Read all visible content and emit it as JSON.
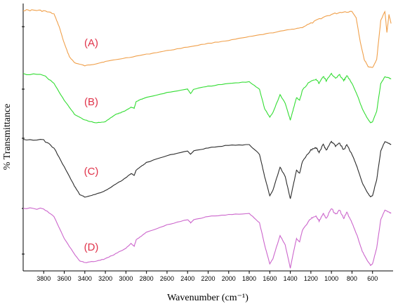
{
  "chart_data": {
    "type": "line",
    "xlabel": "Wavenumber (cm⁻¹)",
    "ylabel": "% Transmittance",
    "xlim": [
      4000,
      400
    ],
    "x_reversed": true,
    "x_ticks": [
      3800,
      3600,
      3400,
      3200,
      3000,
      2800,
      2600,
      2400,
      2200,
      2000,
      1800,
      1600,
      1400,
      1200,
      1000,
      800,
      600
    ],
    "y_ticks_labeled": false,
    "grid": false,
    "legend": "none",
    "series": [
      {
        "name": "(A)",
        "color": "#f0a04b",
        "points": [
          [
            4000,
            0.03
          ],
          [
            3900,
            0.03
          ],
          [
            3800,
            0.04
          ],
          [
            3700,
            0.09
          ],
          [
            3650,
            0.3
          ],
          [
            3600,
            0.58
          ],
          [
            3550,
            0.8
          ],
          [
            3500,
            0.9
          ],
          [
            3400,
            0.95
          ],
          [
            3300,
            0.92
          ],
          [
            3200,
            0.88
          ],
          [
            3000,
            0.82
          ],
          [
            2800,
            0.76
          ],
          [
            2600,
            0.7
          ],
          [
            2400,
            0.64
          ],
          [
            2200,
            0.58
          ],
          [
            2000,
            0.53
          ],
          [
            1800,
            0.47
          ],
          [
            1600,
            0.41
          ],
          [
            1400,
            0.35
          ],
          [
            1300,
            0.32
          ],
          [
            1200,
            0.25
          ],
          [
            1100,
            0.16
          ],
          [
            1000,
            0.1
          ],
          [
            900,
            0.06
          ],
          [
            800,
            0.05
          ],
          [
            760,
            0.15
          ],
          [
            720,
            0.55
          ],
          [
            680,
            0.85
          ],
          [
            640,
            0.97
          ],
          [
            600,
            0.98
          ],
          [
            560,
            0.85
          ],
          [
            520,
            0.2
          ],
          [
            480,
            0.05
          ],
          [
            460,
            0.4
          ],
          [
            440,
            0.1
          ],
          [
            420,
            0.25
          ]
        ]
      },
      {
        "name": "(B)",
        "color": "#33dd33",
        "points": [
          [
            4000,
            0.03
          ],
          [
            3800,
            0.05
          ],
          [
            3700,
            0.2
          ],
          [
            3600,
            0.5
          ],
          [
            3500,
            0.75
          ],
          [
            3400,
            0.85
          ],
          [
            3300,
            0.9
          ],
          [
            3200,
            0.88
          ],
          [
            3100,
            0.75
          ],
          [
            3050,
            0.72
          ],
          [
            3000,
            0.68
          ],
          [
            2950,
            0.62
          ],
          [
            2920,
            0.64
          ],
          [
            2900,
            0.52
          ],
          [
            2850,
            0.48
          ],
          [
            2800,
            0.45
          ],
          [
            2600,
            0.36
          ],
          [
            2400,
            0.3
          ],
          [
            2370,
            0.38
          ],
          [
            2340,
            0.3
          ],
          [
            2200,
            0.25
          ],
          [
            2000,
            0.2
          ],
          [
            1800,
            0.17
          ],
          [
            1700,
            0.3
          ],
          [
            1650,
            0.65
          ],
          [
            1600,
            0.8
          ],
          [
            1570,
            0.72
          ],
          [
            1500,
            0.4
          ],
          [
            1450,
            0.55
          ],
          [
            1400,
            0.85
          ],
          [
            1370,
            0.65
          ],
          [
            1340,
            0.45
          ],
          [
            1310,
            0.5
          ],
          [
            1280,
            0.3
          ],
          [
            1200,
            0.15
          ],
          [
            1150,
            0.12
          ],
          [
            1120,
            0.2
          ],
          [
            1080,
            0.07
          ],
          [
            1050,
            0.15
          ],
          [
            1000,
            0.03
          ],
          [
            960,
            0.1
          ],
          [
            920,
            0.05
          ],
          [
            880,
            0.15
          ],
          [
            850,
            0.06
          ],
          [
            800,
            0.2
          ],
          [
            750,
            0.4
          ],
          [
            700,
            0.65
          ],
          [
            650,
            0.82
          ],
          [
            620,
            0.9
          ],
          [
            600,
            0.88
          ],
          [
            560,
            0.7
          ],
          [
            520,
            0.2
          ],
          [
            480,
            0.08
          ],
          [
            440,
            0.1
          ],
          [
            420,
            0.12
          ]
        ]
      },
      {
        "name": "(C)",
        "color": "#2b2b2b",
        "points": [
          [
            4000,
            0.02
          ],
          [
            3800,
            0.03
          ],
          [
            3700,
            0.15
          ],
          [
            3600,
            0.45
          ],
          [
            3500,
            0.75
          ],
          [
            3450,
            0.88
          ],
          [
            3400,
            0.92
          ],
          [
            3300,
            0.88
          ],
          [
            3200,
            0.82
          ],
          [
            3100,
            0.72
          ],
          [
            3000,
            0.62
          ],
          [
            2950,
            0.55
          ],
          [
            2920,
            0.58
          ],
          [
            2900,
            0.5
          ],
          [
            2850,
            0.44
          ],
          [
            2800,
            0.38
          ],
          [
            2600,
            0.27
          ],
          [
            2400,
            0.2
          ],
          [
            2370,
            0.25
          ],
          [
            2340,
            0.2
          ],
          [
            2200,
            0.15
          ],
          [
            2000,
            0.11
          ],
          [
            1800,
            0.1
          ],
          [
            1700,
            0.25
          ],
          [
            1650,
            0.6
          ],
          [
            1600,
            0.9
          ],
          [
            1570,
            0.82
          ],
          [
            1500,
            0.45
          ],
          [
            1450,
            0.6
          ],
          [
            1400,
            0.95
          ],
          [
            1370,
            0.72
          ],
          [
            1340,
            0.5
          ],
          [
            1310,
            0.55
          ],
          [
            1280,
            0.35
          ],
          [
            1200,
            0.18
          ],
          [
            1150,
            0.15
          ],
          [
            1120,
            0.22
          ],
          [
            1080,
            0.1
          ],
          [
            1050,
            0.18
          ],
          [
            1000,
            0.05
          ],
          [
            960,
            0.12
          ],
          [
            920,
            0.08
          ],
          [
            880,
            0.18
          ],
          [
            850,
            0.1
          ],
          [
            800,
            0.25
          ],
          [
            750,
            0.45
          ],
          [
            700,
            0.7
          ],
          [
            650,
            0.85
          ],
          [
            620,
            0.92
          ],
          [
            600,
            0.9
          ],
          [
            560,
            0.65
          ],
          [
            520,
            0.2
          ],
          [
            480,
            0.05
          ],
          [
            440,
            0.08
          ],
          [
            420,
            0.1
          ]
        ]
      },
      {
        "name": "(D)",
        "color": "#cc66cc",
        "points": [
          [
            4000,
            0.02
          ],
          [
            3800,
            0.03
          ],
          [
            3700,
            0.15
          ],
          [
            3600,
            0.5
          ],
          [
            3500,
            0.75
          ],
          [
            3450,
            0.85
          ],
          [
            3400,
            0.88
          ],
          [
            3300,
            0.86
          ],
          [
            3200,
            0.82
          ],
          [
            3100,
            0.74
          ],
          [
            3000,
            0.65
          ],
          [
            2950,
            0.58
          ],
          [
            2920,
            0.62
          ],
          [
            2900,
            0.52
          ],
          [
            2850,
            0.46
          ],
          [
            2800,
            0.4
          ],
          [
            2600,
            0.28
          ],
          [
            2400,
            0.2
          ],
          [
            2370,
            0.25
          ],
          [
            2340,
            0.2
          ],
          [
            2200,
            0.15
          ],
          [
            2000,
            0.12
          ],
          [
            1800,
            0.1
          ],
          [
            1700,
            0.25
          ],
          [
            1650,
            0.6
          ],
          [
            1600,
            0.9
          ],
          [
            1570,
            0.82
          ],
          [
            1500,
            0.45
          ],
          [
            1450,
            0.6
          ],
          [
            1400,
            0.97
          ],
          [
            1370,
            0.72
          ],
          [
            1340,
            0.5
          ],
          [
            1310,
            0.55
          ],
          [
            1280,
            0.35
          ],
          [
            1200,
            0.18
          ],
          [
            1150,
            0.15
          ],
          [
            1120,
            0.22
          ],
          [
            1080,
            0.1
          ],
          [
            1050,
            0.18
          ],
          [
            1000,
            0.02
          ],
          [
            960,
            0.12
          ],
          [
            920,
            0.05
          ],
          [
            880,
            0.18
          ],
          [
            850,
            0.08
          ],
          [
            800,
            0.25
          ],
          [
            750,
            0.45
          ],
          [
            700,
            0.7
          ],
          [
            650,
            0.85
          ],
          [
            620,
            0.92
          ],
          [
            600,
            0.9
          ],
          [
            560,
            0.65
          ],
          [
            520,
            0.2
          ],
          [
            480,
            0.05
          ],
          [
            440,
            0.08
          ],
          [
            420,
            0.1
          ]
        ]
      }
    ]
  }
}
